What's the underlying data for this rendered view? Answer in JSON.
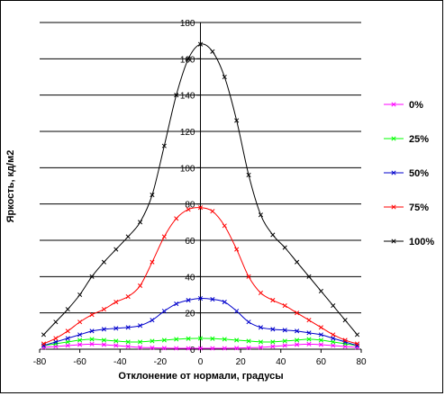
{
  "chart_data": {
    "type": "line",
    "title": "",
    "xlabel": "Отклонение от нормали, градусы",
    "ylabel": "Яркость, кд/м2",
    "xlim": [
      -80,
      80
    ],
    "ylim": [
      0,
      180
    ],
    "x_ticks": [
      "-80",
      "-60",
      "-40",
      "-20",
      "0",
      "20",
      "40",
      "60",
      "80"
    ],
    "y_ticks": [
      "0",
      "20",
      "40",
      "60",
      "80",
      "100",
      "120",
      "140",
      "160",
      "180"
    ],
    "grid": "horizontal",
    "legend_position": "right",
    "marker": "x",
    "series": [
      {
        "name": "0%",
        "color": "#ff00ff",
        "points": [
          [
            -78,
            1
          ],
          [
            -72,
            1.5
          ],
          [
            -66,
            2
          ],
          [
            -60,
            2.5
          ],
          [
            -54,
            2.8
          ],
          [
            -48,
            2.5
          ],
          [
            -42,
            2
          ],
          [
            -36,
            1.5
          ],
          [
            -30,
            1
          ],
          [
            -24,
            0.8
          ],
          [
            -18,
            0.6
          ],
          [
            -12,
            0.5
          ],
          [
            -6,
            0.5
          ],
          [
            0,
            0.5
          ],
          [
            6,
            0.5
          ],
          [
            12,
            0.5
          ],
          [
            18,
            0.6
          ],
          [
            24,
            0.8
          ],
          [
            30,
            1
          ],
          [
            36,
            1.5
          ],
          [
            42,
            2
          ],
          [
            48,
            2.5
          ],
          [
            54,
            2.8
          ],
          [
            60,
            2.5
          ],
          [
            66,
            2
          ],
          [
            72,
            1.5
          ],
          [
            78,
            1
          ]
        ]
      },
      {
        "name": "25%",
        "color": "#00ff00",
        "points": [
          [
            -78,
            2
          ],
          [
            -72,
            3
          ],
          [
            -66,
            4
          ],
          [
            -60,
            5
          ],
          [
            -54,
            5.5
          ],
          [
            -48,
            5
          ],
          [
            -42,
            4.5
          ],
          [
            -36,
            4
          ],
          [
            -30,
            4
          ],
          [
            -24,
            4.5
          ],
          [
            -18,
            5
          ],
          [
            -12,
            5.5
          ],
          [
            -6,
            5.8
          ],
          [
            0,
            6
          ],
          [
            6,
            5.8
          ],
          [
            12,
            5.5
          ],
          [
            18,
            5
          ],
          [
            24,
            4.5
          ],
          [
            30,
            4
          ],
          [
            36,
            4
          ],
          [
            42,
            4.5
          ],
          [
            48,
            5
          ],
          [
            54,
            5.5
          ],
          [
            60,
            5
          ],
          [
            66,
            4
          ],
          [
            72,
            3
          ],
          [
            78,
            2
          ]
        ]
      },
      {
        "name": "50%",
        "color": "#0000cc",
        "points": [
          [
            -78,
            2
          ],
          [
            -72,
            4
          ],
          [
            -66,
            6
          ],
          [
            -60,
            8
          ],
          [
            -54,
            10
          ],
          [
            -48,
            11
          ],
          [
            -42,
            11.5
          ],
          [
            -36,
            12
          ],
          [
            -30,
            13
          ],
          [
            -24,
            16
          ],
          [
            -18,
            21
          ],
          [
            -12,
            25
          ],
          [
            -6,
            27
          ],
          [
            0,
            28
          ],
          [
            6,
            27.5
          ],
          [
            12,
            26
          ],
          [
            18,
            21
          ],
          [
            24,
            15
          ],
          [
            30,
            12
          ],
          [
            36,
            11
          ],
          [
            42,
            10.5
          ],
          [
            48,
            10
          ],
          [
            54,
            9
          ],
          [
            60,
            8
          ],
          [
            66,
            6
          ],
          [
            72,
            4
          ],
          [
            78,
            2
          ]
        ]
      },
      {
        "name": "75%",
        "color": "#ff0000",
        "points": [
          [
            -78,
            3
          ],
          [
            -72,
            6
          ],
          [
            -66,
            10
          ],
          [
            -60,
            15
          ],
          [
            -54,
            19
          ],
          [
            -48,
            22
          ],
          [
            -42,
            26
          ],
          [
            -36,
            29
          ],
          [
            -30,
            35
          ],
          [
            -24,
            48
          ],
          [
            -18,
            62
          ],
          [
            -12,
            72
          ],
          [
            -6,
            77
          ],
          [
            0,
            78
          ],
          [
            6,
            76
          ],
          [
            12,
            68
          ],
          [
            18,
            55
          ],
          [
            24,
            40
          ],
          [
            30,
            31
          ],
          [
            36,
            27
          ],
          [
            42,
            24
          ],
          [
            48,
            20
          ],
          [
            54,
            16
          ],
          [
            60,
            12
          ],
          [
            66,
            8
          ],
          [
            72,
            5
          ],
          [
            78,
            3
          ]
        ]
      },
      {
        "name": "100%",
        "color": "#000000",
        "points": [
          [
            -78,
            8
          ],
          [
            -72,
            15
          ],
          [
            -66,
            22
          ],
          [
            -60,
            30
          ],
          [
            -54,
            40
          ],
          [
            -48,
            48
          ],
          [
            -42,
            55
          ],
          [
            -36,
            62
          ],
          [
            -30,
            70
          ],
          [
            -24,
            85
          ],
          [
            -18,
            112
          ],
          [
            -12,
            140
          ],
          [
            -6,
            160
          ],
          [
            0,
            168
          ],
          [
            6,
            164
          ],
          [
            12,
            150
          ],
          [
            18,
            126
          ],
          [
            24,
            96
          ],
          [
            30,
            74
          ],
          [
            36,
            63
          ],
          [
            42,
            56
          ],
          [
            48,
            48
          ],
          [
            54,
            40
          ],
          [
            60,
            32
          ],
          [
            66,
            24
          ],
          [
            72,
            16
          ],
          [
            78,
            8
          ]
        ]
      }
    ]
  }
}
